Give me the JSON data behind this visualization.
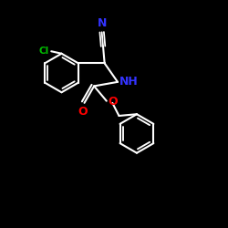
{
  "background_color": "#000000",
  "bond_color": "#ffffff",
  "N_color": "#3333ff",
  "O_color": "#ff0000",
  "Cl_color": "#00bb00",
  "linewidth": 1.5,
  "figsize": [
    2.5,
    2.5
  ],
  "dpi": 100,
  "xlim": [
    0,
    10
  ],
  "ylim": [
    0,
    10
  ]
}
